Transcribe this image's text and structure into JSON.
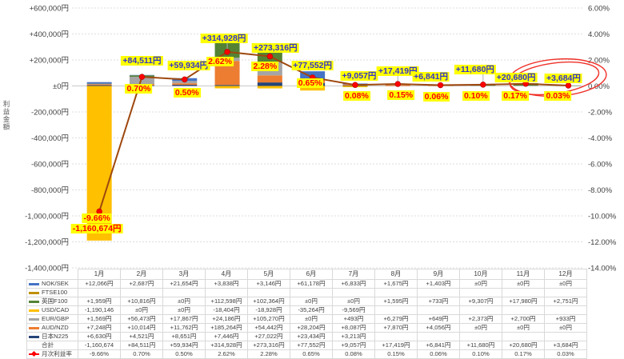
{
  "axes": {
    "left_axis_title": "利益金額",
    "left_ticks": [
      "+600,000円",
      "+400,000円",
      "+200,000円",
      "±0円",
      "-200,000円",
      "-400,000円",
      "-600,000円",
      "-800,000円",
      "-1,000,000円",
      "-1,200,000円",
      "-1,400,000円"
    ],
    "right_ticks": [
      "6.00%",
      "4.00%",
      "2.00%",
      "0.00%",
      "-2.00%",
      "-4.00%",
      "-6.00%",
      "-8.00%",
      "-10.00%",
      "-12.00%",
      "-14.00%"
    ]
  },
  "chart_data": {
    "type": "combo stacked bar + line",
    "categories": [
      "1月",
      "2月",
      "3月",
      "4月",
      "5月",
      "6月",
      "7月",
      "8月",
      "9月",
      "10月",
      "11月",
      "12月"
    ],
    "unit_left_axis": "円",
    "unit_right_axis": "%",
    "left_axis_range_yen": [
      -1400000,
      600000
    ],
    "right_axis_range_pct": [
      -14,
      6
    ],
    "grid": "horizontal dotted",
    "legend_position": "table rows below chart",
    "bar_series": [
      {
        "name": "NOK/SEK",
        "color": "#4472C4",
        "values": [
          12066,
          2687,
          21654,
          3838,
          3146,
          61178,
          6833,
          1675,
          1403,
          0,
          0,
          0
        ]
      },
      {
        "name": "FTSE100",
        "color": "#BF9000",
        "values": [
          null,
          null,
          null,
          null,
          null,
          null,
          null,
          null,
          null,
          null,
          null,
          null
        ]
      },
      {
        "name": "英国F100",
        "color": "#548235",
        "values": [
          1959,
          10816,
          0,
          112598,
          102364,
          0,
          0,
          1595,
          733,
          9307,
          17980,
          2751
        ]
      },
      {
        "name": "USD/CAD",
        "color": "#FFC000",
        "values": [
          -1190146,
          0,
          0,
          -18404,
          -18928,
          -35264,
          -9569,
          null,
          null,
          null,
          null,
          null
        ]
      },
      {
        "name": "EUR/GBP",
        "color": "#A5A5A5",
        "values": [
          1569,
          56473,
          17867,
          24186,
          105270,
          0,
          493,
          6279,
          649,
          2373,
          2700,
          933
        ]
      },
      {
        "name": "AUD/NZD",
        "color": "#ED7D31",
        "values": [
          7248,
          10014,
          11762,
          185264,
          54442,
          28204,
          8087,
          7870,
          4056,
          0,
          0,
          0
        ]
      },
      {
        "name": "日本N225",
        "color": "#264478",
        "values": [
          6630,
          4521,
          8651,
          7446,
          27022,
          23434,
          3213,
          null,
          null,
          null,
          null,
          null
        ]
      }
    ],
    "line_series": {
      "name": "月次利益率",
      "color": "#9E480E",
      "marker_color": "#FF0000",
      "values_pct": [
        -9.66,
        0.7,
        0.5,
        2.62,
        2.28,
        0.65,
        0.08,
        0.15,
        0.06,
        0.1,
        0.17,
        0.03
      ]
    },
    "totals_yen": [
      -1160674,
      84511,
      59934,
      314928,
      273316,
      77552,
      9057,
      17419,
      6841,
      11680,
      20680,
      3684
    ]
  },
  "annotations": {
    "amounts": [
      "-1,160,674円",
      "+84,511円",
      "+59,934円",
      "+314,928円",
      "+273,316円",
      "+77,552円",
      "+9,057円",
      "+17,419円",
      "+6,841円",
      "+11,680円",
      "+20,680円",
      "+3,684円"
    ],
    "percents": [
      "-9.66%",
      "0.70%",
      "0.50%",
      "2.62%",
      "2.28%",
      "0.65%",
      "0.08%",
      "0.15%",
      "0.06%",
      "0.10%",
      "0.17%",
      "0.03%"
    ],
    "highlight_bg": "#FFFF00",
    "amount_color": "#3333CC",
    "percent_color": "#FF0000",
    "circle_color": "#F03028",
    "circled_months": "11月〜12月"
  },
  "table": {
    "col_headers": [
      "1月",
      "2月",
      "3月",
      "4月",
      "5月",
      "6月",
      "7月",
      "8月",
      "9月",
      "10月",
      "11月",
      "12月"
    ],
    "rows": [
      {
        "name": "NOK/SEK",
        "swatch": "#4472C4",
        "cells": [
          "+12,066円",
          "+2,687円",
          "+21,654円",
          "+3,838円",
          "+3,146円",
          "+61,178円",
          "+6,833円",
          "+1,675円",
          "+1,403円",
          "±0円",
          "±0円",
          "±0円"
        ]
      },
      {
        "name": "FTSE100",
        "swatch": "#BF9000",
        "cells": [
          "",
          "",
          "",
          "",
          "",
          "",
          "",
          "",
          "",
          "",
          "",
          ""
        ]
      },
      {
        "name": "英国F100",
        "swatch": "#548235",
        "cells": [
          "+1,959円",
          "+10,816円",
          "±0円",
          "+112,598円",
          "+102,364円",
          "±0円",
          "±0円",
          "+1,595円",
          "+733円",
          "+9,307円",
          "+17,980円",
          "+2,751円"
        ]
      },
      {
        "name": "USD/CAD",
        "swatch": "#FFC000",
        "cells": [
          "-1,190,146",
          "±0円",
          "±0円",
          "-18,404円",
          "-18,928円",
          "-35,264円",
          "-9,569円",
          "",
          "",
          "",
          "",
          ""
        ]
      },
      {
        "name": "EUR/GBP",
        "swatch": "#A5A5A5",
        "cells": [
          "+1,569円",
          "+56,473円",
          "+17,867円",
          "+24,186円",
          "+105,270円",
          "±0円",
          "+493円",
          "+6,279円",
          "+649円",
          "+2,373円",
          "+2,700円",
          "+933円"
        ]
      },
      {
        "name": "AUD/NZD",
        "swatch": "#ED7D31",
        "cells": [
          "+7,248円",
          "+10,014円",
          "+11,762円",
          "+185,264円",
          "+54,442円",
          "+28,204円",
          "+8,087円",
          "+7,870円",
          "+4,056円",
          "±0円",
          "±0円",
          "±0円"
        ]
      },
      {
        "name": "日本N225",
        "swatch": "#264478",
        "cells": [
          "+6,630円",
          "+4,521円",
          "+8,651円",
          "+7,446円",
          "+27,022円",
          "+23,434円",
          "+3,213円",
          "",
          "",
          "",
          "",
          ""
        ]
      },
      {
        "name": "合計",
        "swatch": null,
        "cells": [
          "-1,160,674",
          "+84,511円",
          "+59,934円",
          "+314,928円",
          "+273,316円",
          "+77,552円",
          "+9,057円",
          "+17,419円",
          "+6,841円",
          "+11,680円",
          "+20,680円",
          "+3,684円"
        ]
      },
      {
        "name": "月次利益率",
        "swatch": "line-marker",
        "cells": [
          "-9.66%",
          "0.70%",
          "0.50%",
          "2.62%",
          "2.28%",
          "0.65%",
          "0.08%",
          "0.15%",
          "0.06%",
          "0.10%",
          "0.17%",
          "0.03%"
        ]
      }
    ]
  }
}
